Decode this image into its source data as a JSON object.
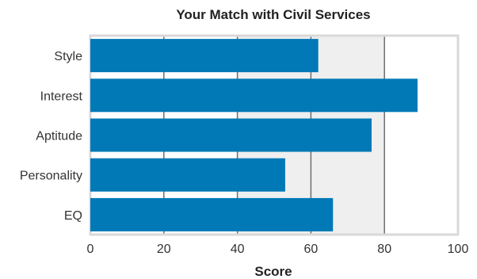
{
  "chart_data": {
    "type": "bar",
    "orientation": "horizontal",
    "title": "Your Match with Civil Services",
    "xlabel": "Score",
    "ylabel": "",
    "categories": [
      "Style",
      "Interest",
      "Aptitude",
      "Personality",
      "EQ"
    ],
    "values": [
      62,
      89,
      76.5,
      53,
      66
    ],
    "xlim": [
      0,
      100
    ],
    "x_ticks": [
      "0",
      "20",
      "40",
      "60",
      "80",
      "100"
    ],
    "grid": true,
    "shaded_band": [
      40,
      80
    ],
    "legend": "none",
    "colors": {
      "bar": "#0079b6",
      "band": "#efefef",
      "grid": "#6d6d6d",
      "border": "#d9d9d9"
    }
  }
}
